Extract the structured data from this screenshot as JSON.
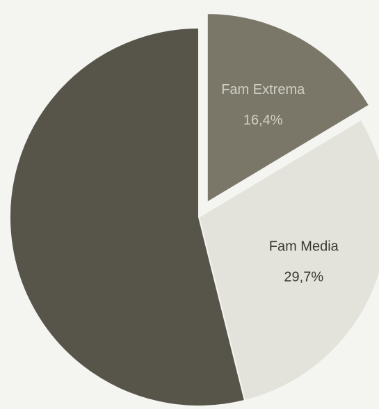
{
  "chart_data": {
    "type": "pie",
    "slices": [
      {
        "label": "Fam Extrema",
        "value": 16.4,
        "value_label": "16,4%",
        "color": "#7a7768",
        "exploded": true
      },
      {
        "label": "Fam Media",
        "value": 29.7,
        "value_label": "29,7%",
        "color": "#e3e3dc",
        "exploded": false
      },
      {
        "label": "",
        "value": 53.9,
        "value_label": "",
        "color": "#57554a",
        "exploded": false
      }
    ],
    "start_angle_deg": 0,
    "direction": "clockwise"
  }
}
